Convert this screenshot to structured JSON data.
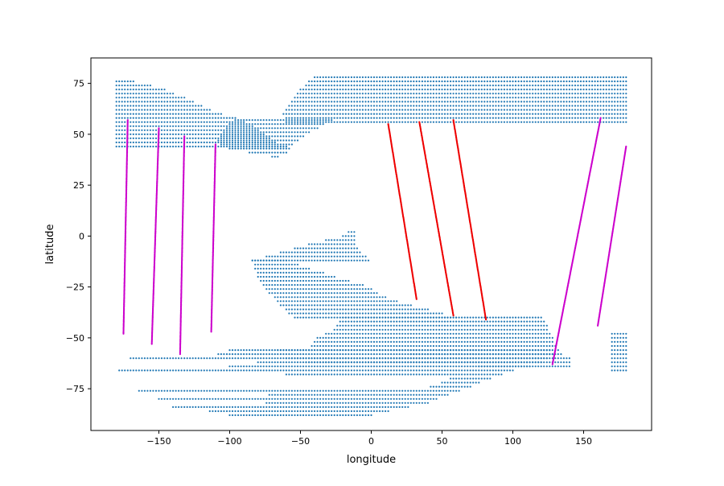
{
  "chart_data": {
    "type": "scatter",
    "title": "",
    "xlabel": "longitude",
    "ylabel": "latitude",
    "xlim": [
      -198,
      198
    ],
    "ylim": [
      -95.5,
      87.5
    ],
    "xticks": [
      -150,
      -100,
      -50,
      0,
      50,
      100,
      150
    ],
    "yticks": [
      -75,
      -50,
      -25,
      0,
      25,
      50,
      75
    ],
    "grid": false,
    "legend": "none",
    "series": [
      {
        "kind": "gridded-region",
        "color": "#1f77b4",
        "step": 2,
        "regions": [
          {
            "lat_min": -88,
            "lat_max": -55,
            "west": [
              [
                -55,
                -165
              ],
              [
                -60,
                -170
              ],
              [
                -66,
                -178
              ],
              [
                -76,
                -165
              ],
              [
                -80,
                -150
              ],
              [
                -84,
                -140
              ],
              [
                -86,
                -115
              ],
              [
                -88,
                -100
              ],
              [
                -88,
                -20
              ],
              [
                -84,
                0
              ],
              [
                -80,
                20
              ],
              [
                -76,
                35
              ],
              [
                -70,
                55
              ],
              [
                -64,
                75
              ],
              [
                -59,
                90
              ],
              [
                -55,
                125
              ]
            ],
            "east": [
              [
                -55,
                125
              ],
              [
                -58,
                128
              ],
              [
                -63,
                120
              ],
              [
                -66,
                100
              ],
              [
                -70,
                85
              ],
              [
                -74,
                70
              ],
              [
                -78,
                55
              ],
              [
                -82,
                40
              ],
              [
                -85,
                20
              ],
              [
                -88,
                0
              ]
            ]
          },
          {
            "lat_min": -64,
            "lat_max": -40,
            "west": [
              [
                -40,
                -20
              ],
              [
                -45,
                -25
              ],
              [
                -50,
                -38
              ],
              [
                -55,
                -45
              ],
              [
                -60,
                -60
              ],
              [
                -62,
                -80
              ],
              [
                -64,
                -100
              ],
              [
                -62,
                -130
              ],
              [
                -60,
                -150
              ]
            ],
            "east": [
              [
                -40,
                120
              ],
              [
                -45,
                125
              ],
              [
                -50,
                128
              ],
              [
                -55,
                132
              ],
              [
                -58,
                135
              ],
              [
                -60,
                140
              ]
            ]
          },
          {
            "lat_min": -40,
            "lat_max": -12,
            "west": [
              [
                -12,
                -85
              ],
              [
                -16,
                -82
              ],
              [
                -22,
                -79
              ],
              [
                -28,
                -72
              ],
              [
                -34,
                -65
              ],
              [
                -40,
                -55
              ]
            ],
            "east": [
              [
                -12,
                -60
              ],
              [
                -20,
                -25
              ],
              [
                -24,
                -5
              ],
              [
                -28,
                5
              ],
              [
                -32,
                18
              ],
              [
                -36,
                40
              ],
              [
                -40,
                60
              ]
            ]
          },
          {
            "lat_min": -12,
            "lat_max": 3,
            "west": [
              [
                3,
                -15
              ],
              [
                0,
                -20
              ],
              [
                -3,
                -40
              ],
              [
                -6,
                -55
              ],
              [
                -9,
                -70
              ],
              [
                -12,
                -85
              ]
            ],
            "east": [
              [
                3,
                -10
              ],
              [
                -2,
                -12
              ],
              [
                -6,
                -10
              ],
              [
                -9,
                -5
              ],
              [
                -12,
                -2
              ]
            ]
          },
          {
            "lat_min": 44,
            "lat_max": 77,
            "west": [
              [
                77,
                -180
              ],
              [
                44,
                -180
              ]
            ],
            "east": [
              [
                77,
                -172
              ],
              [
                72,
                -145
              ],
              [
                66,
                -125
              ],
              [
                61,
                -110
              ],
              [
                58,
                -95
              ],
              [
                55,
                -85
              ],
              [
                50,
                -75
              ],
              [
                45,
                -65
              ],
              [
                44,
                -60
              ]
            ]
          },
          {
            "lat_min": 39,
            "lat_max": 58,
            "west": [
              [
                58,
                -95
              ],
              [
                52,
                -105
              ],
              [
                46,
                -110
              ],
              [
                43,
                -100
              ],
              [
                40,
                -80
              ],
              [
                39,
                -70
              ]
            ],
            "east": [
              [
                58,
                -25
              ],
              [
                54,
                -35
              ],
              [
                50,
                -45
              ],
              [
                45,
                -55
              ],
              [
                40,
                -60
              ],
              [
                39,
                -65
              ]
            ]
          },
          {
            "lat_min": 56,
            "lat_max": 79,
            "west": [
              [
                79,
                -40
              ],
              [
                72,
                -50
              ],
              [
                65,
                -58
              ],
              [
                60,
                -62
              ],
              [
                56,
                -60
              ]
            ],
            "east": [
              [
                79,
                180
              ],
              [
                56,
                180
              ]
            ]
          },
          {
            "lat_min": -66,
            "lat_max": -48,
            "west": [
              [
                -48,
                170
              ],
              [
                -66,
                170
              ]
            ],
            "east": [
              [
                -48,
                180
              ],
              [
                -66,
                180
              ]
            ]
          }
        ]
      },
      {
        "kind": "track",
        "color": "#cc00cc",
        "tracks": [
          {
            "lat": [
              -48,
              57
            ],
            "lon": [
              -175,
              -172
            ]
          },
          {
            "lat": [
              -53,
              53
            ],
            "lon": [
              -155,
              -150
            ]
          },
          {
            "lat": [
              -58,
              49
            ],
            "lon": [
              -135,
              -132
            ]
          },
          {
            "lat": [
              -47,
              45
            ],
            "lon": [
              -113,
              -110
            ]
          },
          {
            "lat": [
              -63,
              58
            ],
            "lon": [
              128,
              162
            ]
          },
          {
            "lat": [
              -44,
              44
            ],
            "lon": [
              160,
              180
            ]
          }
        ]
      },
      {
        "kind": "track",
        "color": "#ee0000",
        "tracks": [
          {
            "lat": [
              55,
              -31
            ],
            "lon": [
              12,
              32
            ]
          },
          {
            "lat": [
              56,
              -39
            ],
            "lon": [
              34,
              58
            ]
          },
          {
            "lat": [
              57,
              -41
            ],
            "lon": [
              58,
              81
            ]
          }
        ]
      }
    ]
  }
}
